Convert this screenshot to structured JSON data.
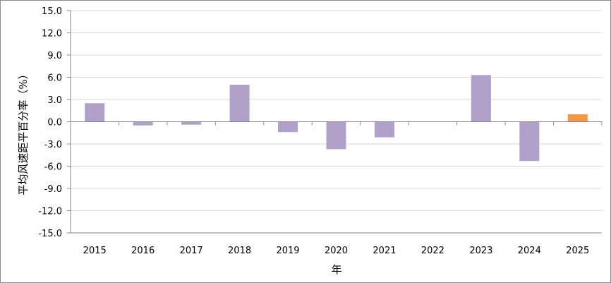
{
  "chart_data": {
    "type": "bar",
    "categories": [
      "2015",
      "2016",
      "2017",
      "2018",
      "2019",
      "2020",
      "2021",
      "2022",
      "2023",
      "2024",
      "2025"
    ],
    "values": [
      2.5,
      -0.5,
      -0.4,
      5.0,
      -1.4,
      -3.7,
      -2.1,
      0.0,
      6.3,
      -5.3,
      1.0
    ],
    "highlight_index": 10,
    "xlabel": "年",
    "ylabel": "平均风速距平百分率（%）",
    "ylim": [
      -15.0,
      15.0
    ],
    "yticks": [
      "15.0",
      "12.0",
      "9.0",
      "6.0",
      "3.0",
      "0.0",
      "-3.0",
      "-6.0",
      "-9.0",
      "-12.0",
      "-15.0"
    ],
    "grid": true,
    "colors": {
      "bar": "#b0a1cb",
      "highlight": "#f0974b",
      "grid": "#d9d9d9",
      "axis": "#868686"
    }
  }
}
